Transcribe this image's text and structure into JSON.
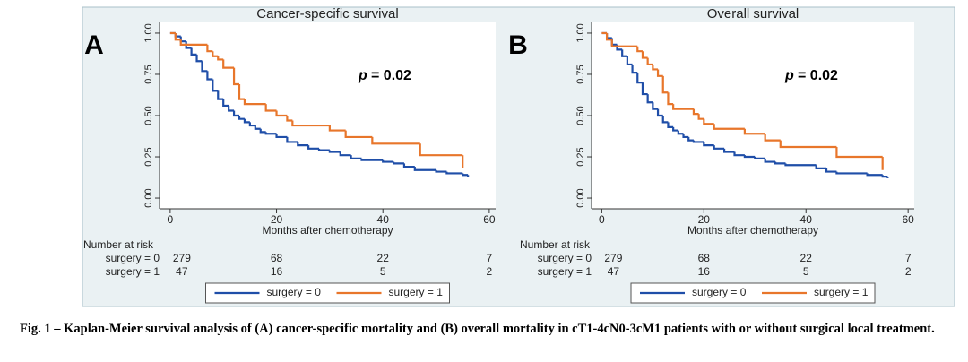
{
  "caption": "Fig. 1 – Kaplan-Meier survival analysis of (A) cancer-specific mortality and (B) overall mortality in cT1-4cN0-3cM1 patients with or without surgical local treatment.",
  "chart_data": [
    {
      "type": "step",
      "panel_label": "A",
      "title": "Cancer-specific survival",
      "p_symbol": "p",
      "p_text": "= 0.02",
      "x_label": "Months after chemotherapy",
      "xlim": [
        -2,
        61.2
      ],
      "xticks": [
        0,
        20,
        40,
        60
      ],
      "ylim": [
        -0.065,
        1.065
      ],
      "yticks": [
        {
          "value": 0,
          "label": "0.00"
        },
        {
          "value": 0.25,
          "label": "0.25"
        },
        {
          "value": 0.5,
          "label": "0.50"
        },
        {
          "value": 0.75,
          "label": "0.75"
        },
        {
          "value": 1,
          "label": "1.00"
        }
      ],
      "series": [
        {
          "name": "surgery = 0",
          "color": "#1f4ea8",
          "x": [
            0,
            1,
            2,
            3,
            4,
            5,
            6,
            7,
            8,
            9,
            10,
            11,
            12,
            13,
            14,
            15,
            16,
            17,
            18,
            20,
            22,
            24,
            26,
            28,
            30,
            32,
            34,
            36,
            40,
            42,
            44,
            46,
            50,
            52,
            55,
            56
          ],
          "values": [
            1.0,
            0.98,
            0.95,
            0.91,
            0.87,
            0.83,
            0.77,
            0.72,
            0.65,
            0.6,
            0.56,
            0.53,
            0.5,
            0.48,
            0.46,
            0.44,
            0.42,
            0.4,
            0.39,
            0.37,
            0.34,
            0.32,
            0.3,
            0.29,
            0.28,
            0.26,
            0.24,
            0.23,
            0.22,
            0.21,
            0.19,
            0.17,
            0.16,
            0.15,
            0.14,
            0.13
          ]
        },
        {
          "name": "surgery = 1",
          "color": "#e8762b",
          "x": [
            0,
            1,
            2,
            7,
            8,
            9,
            10,
            12,
            13,
            14,
            18,
            20,
            22,
            23,
            30,
            33,
            38,
            47,
            55
          ],
          "values": [
            1.0,
            0.96,
            0.93,
            0.89,
            0.86,
            0.84,
            0.79,
            0.69,
            0.6,
            0.57,
            0.53,
            0.5,
            0.47,
            0.44,
            0.41,
            0.37,
            0.33,
            0.26,
            0.18
          ]
        }
      ],
      "risk_table": {
        "title": "Number at risk",
        "rows": [
          {
            "label": "surgery = 0",
            "values": [
              279,
              68,
              22,
              7
            ]
          },
          {
            "label": "surgery = 1",
            "values": [
              47,
              16,
              5,
              2
            ]
          }
        ]
      }
    },
    {
      "type": "step",
      "panel_label": "B",
      "title": "Overall survival",
      "p_symbol": "p",
      "p_text": "= 0.02",
      "x_label": "Months after chemotherapy",
      "xlim": [
        -2,
        61.2
      ],
      "xticks": [
        0,
        20,
        40,
        60
      ],
      "ylim": [
        -0.065,
        1.065
      ],
      "yticks": [
        {
          "value": 0,
          "label": "0.00"
        },
        {
          "value": 0.25,
          "label": "0.25"
        },
        {
          "value": 0.5,
          "label": "0.50"
        },
        {
          "value": 0.75,
          "label": "0.75"
        },
        {
          "value": 1,
          "label": "1.00"
        }
      ],
      "series": [
        {
          "name": "surgery = 0",
          "color": "#1f4ea8",
          "x": [
            0,
            1,
            2,
            3,
            4,
            5,
            6,
            7,
            8,
            9,
            10,
            11,
            12,
            13,
            14,
            15,
            16,
            17,
            18,
            20,
            22,
            24,
            26,
            28,
            30,
            32,
            34,
            36,
            42,
            44,
            46,
            52,
            55,
            56
          ],
          "values": [
            1.0,
            0.97,
            0.93,
            0.9,
            0.86,
            0.81,
            0.76,
            0.7,
            0.63,
            0.58,
            0.54,
            0.5,
            0.46,
            0.43,
            0.41,
            0.39,
            0.37,
            0.35,
            0.34,
            0.32,
            0.3,
            0.28,
            0.26,
            0.25,
            0.24,
            0.22,
            0.21,
            0.2,
            0.18,
            0.16,
            0.15,
            0.14,
            0.13,
            0.12
          ]
        },
        {
          "name": "surgery = 1",
          "color": "#e8762b",
          "x": [
            0,
            1,
            2,
            7,
            8,
            9,
            10,
            11,
            12,
            13,
            14,
            18,
            19,
            20,
            22,
            28,
            32,
            35,
            46,
            55
          ],
          "values": [
            1.0,
            0.96,
            0.92,
            0.89,
            0.85,
            0.81,
            0.78,
            0.74,
            0.64,
            0.57,
            0.54,
            0.51,
            0.48,
            0.45,
            0.42,
            0.39,
            0.35,
            0.31,
            0.25,
            0.17
          ]
        }
      ],
      "risk_table": {
        "title": "Number at risk",
        "rows": [
          {
            "label": "surgery = 0",
            "values": [
              279,
              68,
              22,
              7
            ]
          },
          {
            "label": "surgery = 1",
            "values": [
              47,
              16,
              5,
              2
            ]
          }
        ]
      }
    }
  ]
}
